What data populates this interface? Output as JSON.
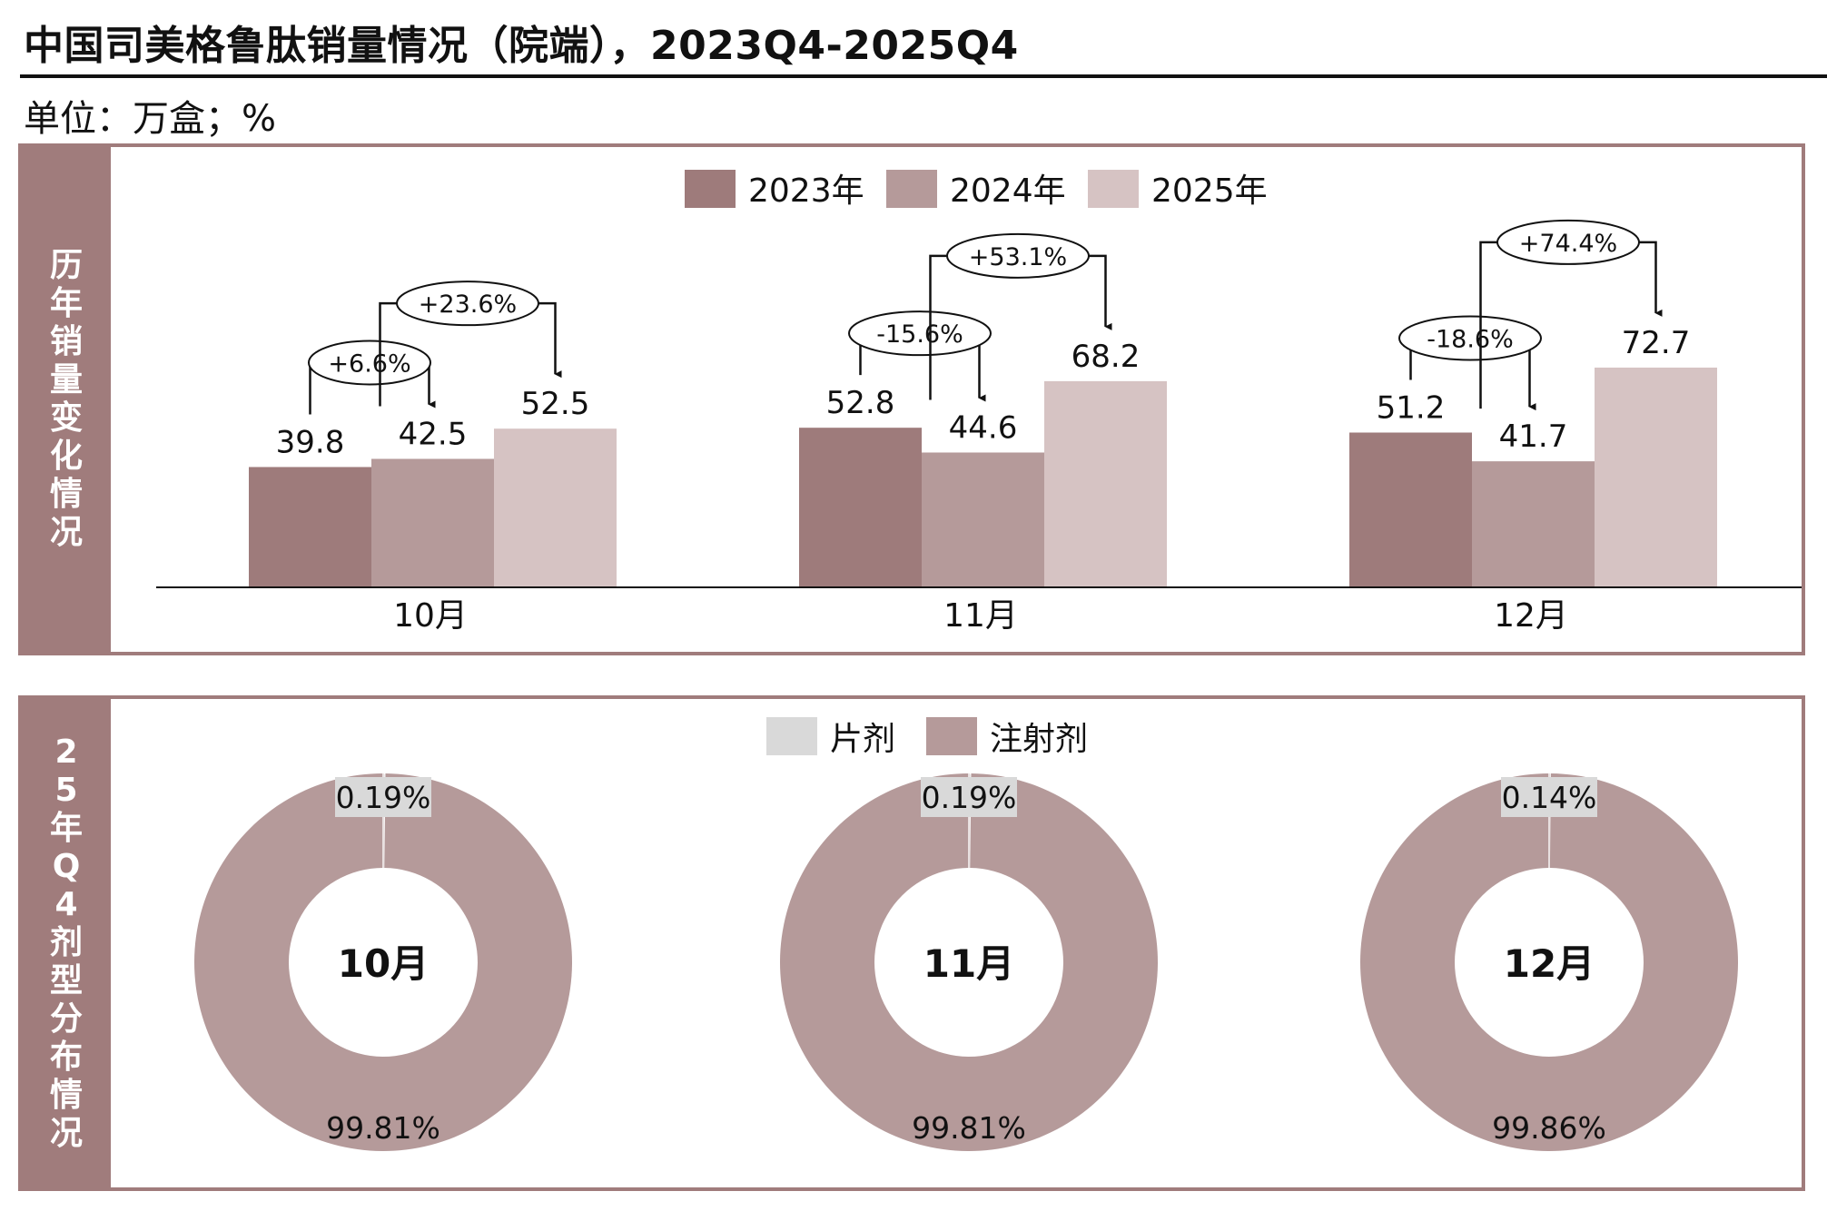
{
  "title": "中国司美格鲁肽销量情况（院端），2023Q4-2025Q4",
  "unit": "单位：万盒；%",
  "top_panel_label": "历年销量变化情况",
  "bottom_panel_label": "25年Q4剂型分布情况",
  "colors": {
    "y2023": "#9e7b7b",
    "y2024": "#b59a9a",
    "y2025": "#d6c3c3",
    "tablet": "#d9d9d9",
    "injection": "#b59a9a",
    "frame": "#a07c7c"
  },
  "chart_data": [
    {
      "type": "bar",
      "categories": [
        "10月",
        "11月",
        "12月"
      ],
      "series": [
        {
          "name": "2023年",
          "values": [
            39.8,
            52.8,
            51.2
          ]
        },
        {
          "name": "2024年",
          "values": [
            42.5,
            44.6,
            41.7
          ]
        },
        {
          "name": "2025年",
          "values": [
            52.5,
            68.2,
            72.7
          ]
        }
      ],
      "legend_position": "top-center",
      "annotations": [
        {
          "category": "10月",
          "from": "2023年",
          "to": "2024年",
          "text": "+6.6%"
        },
        {
          "category": "10月",
          "from": "2024年",
          "to": "2025年",
          "text": "+23.6%"
        },
        {
          "category": "11月",
          "from": "2023年",
          "to": "2024年",
          "text": "-15.6%"
        },
        {
          "category": "11月",
          "from": "2024年",
          "to": "2025年",
          "text": "+53.1%"
        },
        {
          "category": "12月",
          "from": "2023年",
          "to": "2024年",
          "text": "-18.6%"
        },
        {
          "category": "12月",
          "from": "2024年",
          "to": "2025年",
          "text": "+74.4%"
        }
      ]
    },
    {
      "type": "pie",
      "legend": [
        "片剂",
        "注射剂"
      ],
      "legend_position": "top-center",
      "donuts": [
        {
          "center_label": "10月",
          "slices": [
            {
              "name": "片剂",
              "value": 0.19,
              "label": "0.19%"
            },
            {
              "name": "注射剂",
              "value": 99.81,
              "label": "99.81%"
            }
          ]
        },
        {
          "center_label": "11月",
          "slices": [
            {
              "name": "片剂",
              "value": 0.19,
              "label": "0.19%"
            },
            {
              "name": "注射剂",
              "value": 99.81,
              "label": "99.81%"
            }
          ]
        },
        {
          "center_label": "12月",
          "slices": [
            {
              "name": "片剂",
              "value": 0.14,
              "label": "0.14%"
            },
            {
              "name": "注射剂",
              "value": 99.86,
              "label": "99.86%"
            }
          ]
        }
      ]
    }
  ]
}
